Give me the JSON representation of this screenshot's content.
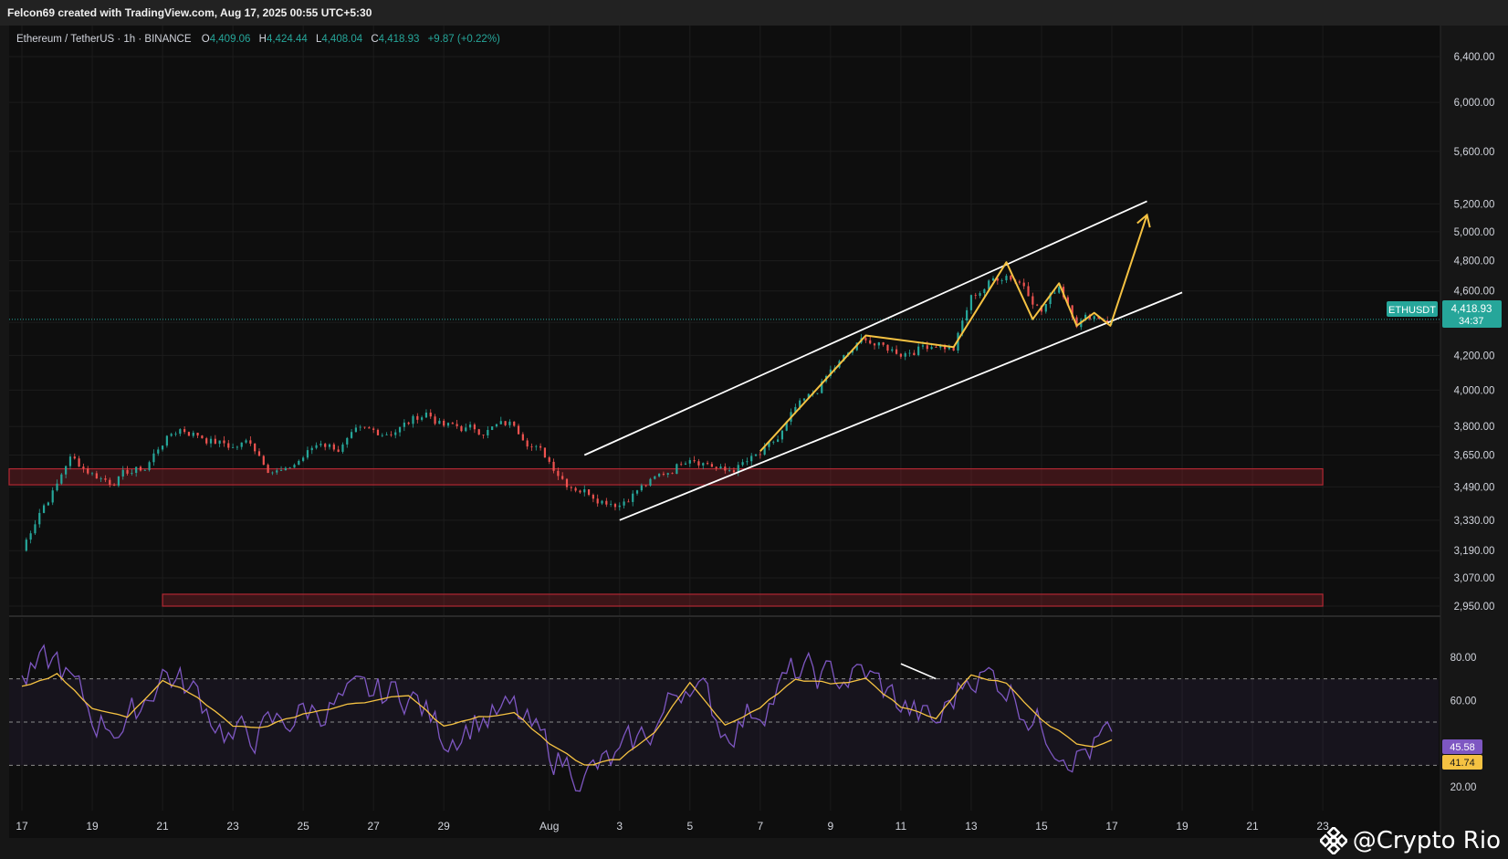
{
  "header": {
    "credit": "Felcon69 created with TradingView.com, Aug 17, 2025 00:55 UTC+5:30"
  },
  "legend": {
    "symbol": "Ethereum / TetherUS · 1h · BINANCE",
    "o_label": "O",
    "o_value": "4,409.06",
    "h_label": "H",
    "h_value": "4,424.44",
    "l_label": "L",
    "l_value": "4,408.04",
    "c_label": "C",
    "c_value": "4,418.93",
    "change": "+9.87 (+0.22%)"
  },
  "price_tag": {
    "ticker": "ETHUSDT",
    "price": "4,418.93",
    "countdown": "34:37"
  },
  "rsi_tags": {
    "rsi": "45.58",
    "ma": "41.74"
  },
  "watermark": {
    "text": "@Crypto Rio",
    "icon": "binance-diamond-icon"
  },
  "colors": {
    "background": "#0e0e0e",
    "up": "#26a69a",
    "down": "#ef5350",
    "rsi_line": "#7e57c2",
    "rsi_ma": "#f5c242",
    "zone": "#b22833",
    "annotation": "#f5c242",
    "channel": "#ffffff"
  },
  "chart_data": [
    {
      "type": "candlestick",
      "title": "Ethereum / TetherUS · 1h · BINANCE",
      "scale": "log",
      "ylim": [
        2900,
        6600
      ],
      "y_ticks": [
        "6,400.00",
        "6,000.00",
        "5,600.00",
        "5,200.00",
        "5,000.00",
        "4,800.00",
        "4,600.00",
        "4,400.00",
        "4,200.00",
        "4,000.00",
        "3,800.00",
        "3,650.00",
        "3,490.00",
        "3,330.00",
        "3,190.00",
        "3,070.00",
        "2,950.00"
      ],
      "x_ticks": [
        "17",
        "19",
        "21",
        "23",
        "25",
        "27",
        "29",
        "Aug",
        "3",
        "5",
        "7",
        "9",
        "11",
        "13",
        "15",
        "17",
        "19",
        "21",
        "23"
      ],
      "x_dates": [
        "2025-07-17",
        "2025-07-19",
        "2025-07-21",
        "2025-07-23",
        "2025-07-25",
        "2025-07-27",
        "2025-07-29",
        "2025-08-01",
        "2025-08-03",
        "2025-08-05",
        "2025-08-07",
        "2025-08-09",
        "2025-08-11",
        "2025-08-13",
        "2025-08-15",
        "2025-08-17",
        "2025-08-19",
        "2025-08-21",
        "2025-08-23"
      ],
      "price_path": [
        [
          "2025-07-17",
          3190
        ],
        [
          "2025-07-17T12",
          3380
        ],
        [
          "2025-07-18",
          3500
        ],
        [
          "2025-07-18T08",
          3640
        ],
        [
          "2025-07-19",
          3560
        ],
        [
          "2025-07-19T12",
          3520
        ],
        [
          "2025-07-20",
          3560
        ],
        [
          "2025-07-20T12",
          3580
        ],
        [
          "2025-07-21",
          3720
        ],
        [
          "2025-07-21T12",
          3790
        ],
        [
          "2025-07-22",
          3760
        ],
        [
          "2025-07-22T12",
          3720
        ],
        [
          "2025-07-23",
          3690
        ],
        [
          "2025-07-23T12",
          3720
        ],
        [
          "2025-07-24",
          3600
        ],
        [
          "2025-07-24T12",
          3560
        ],
        [
          "2025-07-25",
          3640
        ],
        [
          "2025-07-25T12",
          3720
        ],
        [
          "2025-07-26",
          3690
        ],
        [
          "2025-07-26T12",
          3750
        ],
        [
          "2025-07-27",
          3760
        ],
        [
          "2025-07-27T12",
          3780
        ],
        [
          "2025-07-28",
          3820
        ],
        [
          "2025-07-28T12",
          3880
        ],
        [
          "2025-07-29",
          3800
        ],
        [
          "2025-07-29T12",
          3790
        ],
        [
          "2025-07-30",
          3780
        ],
        [
          "2025-07-30T12",
          3800
        ],
        [
          "2025-07-31",
          3810
        ],
        [
          "2025-07-31T12",
          3720
        ],
        [
          "2025-08-01",
          3620
        ],
        [
          "2025-08-01T12",
          3520
        ],
        [
          "2025-08-02",
          3480
        ],
        [
          "2025-08-02T12",
          3440
        ],
        [
          "2025-08-03",
          3420
        ],
        [
          "2025-08-03T12",
          3480
        ],
        [
          "2025-08-04",
          3520
        ],
        [
          "2025-08-04T12",
          3580
        ],
        [
          "2025-08-05",
          3660
        ],
        [
          "2025-08-05T12",
          3620
        ],
        [
          "2025-08-06",
          3560
        ],
        [
          "2025-08-06T12",
          3600
        ],
        [
          "2025-08-07",
          3640
        ],
        [
          "2025-08-07T12",
          3720
        ],
        [
          "2025-08-08",
          3880
        ],
        [
          "2025-08-08T12",
          3960
        ],
        [
          "2025-08-09",
          4100
        ],
        [
          "2025-08-09T12",
          4200
        ],
        [
          "2025-08-10",
          4300
        ],
        [
          "2025-08-10T12",
          4240
        ],
        [
          "2025-08-11",
          4220
        ],
        [
          "2025-08-11T12",
          4250
        ],
        [
          "2025-08-12",
          4280
        ],
        [
          "2025-08-12T12",
          4240
        ],
        [
          "2025-08-13",
          4550
        ],
        [
          "2025-08-13T12",
          4650
        ],
        [
          "2025-08-14",
          4720
        ],
        [
          "2025-08-14T12",
          4650
        ],
        [
          "2025-08-15",
          4480
        ],
        [
          "2025-08-15T12",
          4640
        ],
        [
          "2025-08-16",
          4420
        ],
        [
          "2025-08-16T12",
          4450
        ],
        [
          "2025-08-17",
          4418.93
        ]
      ],
      "zones": [
        {
          "from_date": "2025-07-17",
          "to_date": "2025-08-23",
          "low": 3500,
          "high": 3580
        },
        {
          "from_date": "2025-07-21",
          "to_date": "2025-08-23",
          "low": 2950,
          "high": 3000
        }
      ],
      "channel": {
        "upper": [
          [
            "2025-08-02",
            3650
          ],
          [
            "2025-08-18",
            5220
          ]
        ],
        "lower": [
          [
            "2025-08-03",
            3330
          ],
          [
            "2025-08-19",
            4590
          ]
        ]
      },
      "wave_path": [
        [
          "2025-08-07",
          3670
        ],
        [
          "2025-08-10",
          4320
        ],
        [
          "2025-08-12T12",
          4250
        ],
        [
          "2025-08-14",
          4790
        ],
        [
          "2025-08-14T18",
          4420
        ],
        [
          "2025-08-15T12",
          4650
        ],
        [
          "2025-08-16",
          4380
        ],
        [
          "2025-08-16T12",
          4460
        ],
        [
          "2025-08-16T23",
          4380
        ],
        [
          "2025-08-18",
          5120
        ]
      ],
      "last_price": 4418.93
    },
    {
      "type": "line",
      "title": "",
      "ylim": [
        15,
        90
      ],
      "y_ticks": [
        "80.00",
        "60.00",
        "20.00"
      ],
      "band": [
        30,
        70
      ],
      "mid": 50,
      "rsi_path": [
        [
          "2025-07-17",
          68
        ],
        [
          "2025-07-18",
          78
        ],
        [
          "2025-07-19",
          52
        ],
        [
          "2025-07-20",
          48
        ],
        [
          "2025-07-21",
          74
        ],
        [
          "2025-07-22",
          62
        ],
        [
          "2025-07-23",
          42
        ],
        [
          "2025-07-24",
          46
        ],
        [
          "2025-07-25",
          55
        ],
        [
          "2025-07-26",
          58
        ],
        [
          "2025-07-27",
          62
        ],
        [
          "2025-07-28",
          64
        ],
        [
          "2025-07-29",
          44
        ],
        [
          "2025-07-30",
          52
        ],
        [
          "2025-07-31",
          54
        ],
        [
          "2025-08-01",
          36
        ],
        [
          "2025-08-02",
          26
        ],
        [
          "2025-08-03",
          32
        ],
        [
          "2025-08-04",
          48
        ],
        [
          "2025-08-05",
          72
        ],
        [
          "2025-08-06",
          46
        ],
        [
          "2025-08-07",
          58
        ],
        [
          "2025-08-08",
          72
        ],
        [
          "2025-08-09",
          70
        ],
        [
          "2025-08-10",
          72
        ],
        [
          "2025-08-11",
          58
        ],
        [
          "2025-08-12",
          48
        ],
        [
          "2025-08-13",
          74
        ],
        [
          "2025-08-14",
          68
        ],
        [
          "2025-08-15",
          48
        ],
        [
          "2025-08-16",
          36
        ],
        [
          "2025-08-16T12",
          38
        ],
        [
          "2025-08-17",
          45.58
        ]
      ],
      "ma_path": [
        [
          "2025-07-17",
          66
        ],
        [
          "2025-07-18",
          72
        ],
        [
          "2025-07-19",
          56
        ],
        [
          "2025-07-20",
          52
        ],
        [
          "2025-07-21",
          70
        ],
        [
          "2025-07-22",
          62
        ],
        [
          "2025-07-23",
          48
        ],
        [
          "2025-07-24",
          48
        ],
        [
          "2025-07-25",
          54
        ],
        [
          "2025-07-26",
          57
        ],
        [
          "2025-07-27",
          60
        ],
        [
          "2025-07-28",
          62
        ],
        [
          "2025-07-29",
          48
        ],
        [
          "2025-07-30",
          52
        ],
        [
          "2025-07-31",
          54
        ],
        [
          "2025-08-01",
          40
        ],
        [
          "2025-08-02",
          30
        ],
        [
          "2025-08-03",
          33
        ],
        [
          "2025-08-04",
          46
        ],
        [
          "2025-08-05",
          68
        ],
        [
          "2025-08-06",
          48
        ],
        [
          "2025-08-07",
          56
        ],
        [
          "2025-08-08",
          70
        ],
        [
          "2025-08-09",
          68
        ],
        [
          "2025-08-10",
          70
        ],
        [
          "2025-08-11",
          57
        ],
        [
          "2025-08-12",
          52
        ],
        [
          "2025-08-13",
          72
        ],
        [
          "2025-08-14",
          68
        ],
        [
          "2025-08-15",
          52
        ],
        [
          "2025-08-16",
          40
        ],
        [
          "2025-08-16T12",
          39
        ],
        [
          "2025-08-17",
          41.74
        ]
      ],
      "rsi_last": 45.58,
      "ma_last": 41.74
    }
  ]
}
